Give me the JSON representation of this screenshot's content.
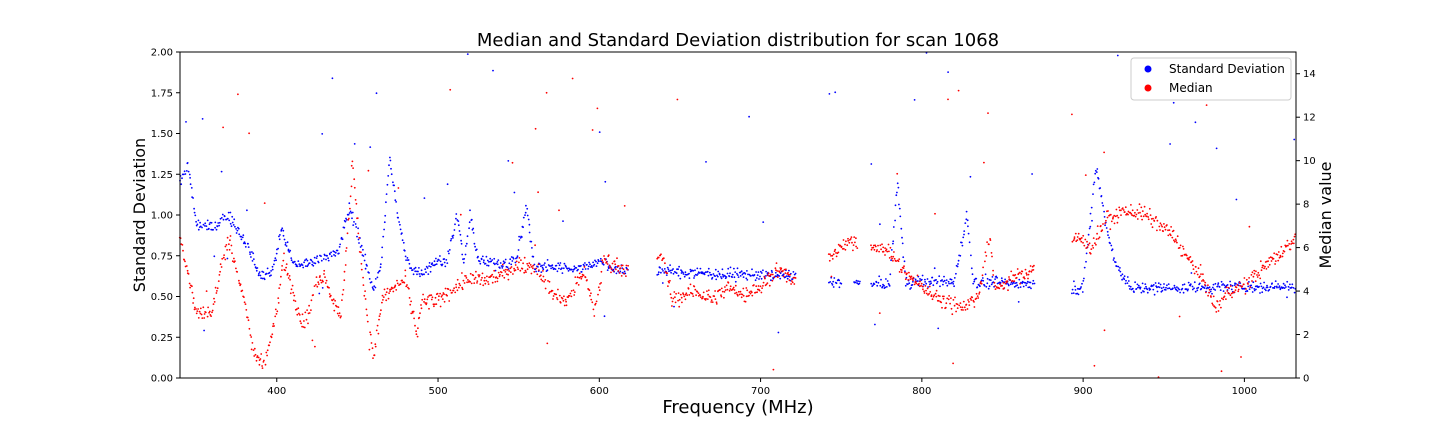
{
  "chart_data": {
    "type": "scatter",
    "title": "Median and Standard Deviation distribution for scan 1068",
    "xlabel": "Frequency (MHz)",
    "ylabel_left": "Standard Deviation",
    "ylabel_right": "Median value",
    "xlim": [
      340,
      1032
    ],
    "ylim_left": [
      0,
      2
    ],
    "ylim_right": [
      0,
      15
    ],
    "x_ticks": [
      400,
      500,
      600,
      700,
      800,
      900,
      1000
    ],
    "y_ticks_left": [
      "0.00",
      "0.25",
      "0.50",
      "0.75",
      "1.00",
      "1.25",
      "1.50",
      "1.75",
      "2.00"
    ],
    "y_ticks_right": [
      "0",
      "2",
      "4",
      "6",
      "8",
      "10",
      "12",
      "14"
    ],
    "grid": false,
    "legend_position": "top-right",
    "colors": {
      "std": "#0000ff",
      "median": "#ff0000"
    },
    "series": [
      {
        "name": "Standard Deviation",
        "axis": "left",
        "color": "#0000ff",
        "profile": [
          [
            340,
            1.2
          ],
          [
            345,
            1.3
          ],
          [
            350,
            0.95
          ],
          [
            360,
            0.92
          ],
          [
            370,
            1.0
          ],
          [
            380,
            0.85
          ],
          [
            390,
            0.62
          ],
          [
            397,
            0.65
          ],
          [
            403,
            0.92
          ],
          [
            410,
            0.7
          ],
          [
            420,
            0.7
          ],
          [
            430,
            0.75
          ],
          [
            438,
            0.76
          ],
          [
            445,
            1.05
          ],
          [
            450,
            0.9
          ],
          [
            455,
            0.7
          ],
          [
            460,
            0.55
          ],
          [
            465,
            0.72
          ],
          [
            470,
            1.35
          ],
          [
            475,
            1.0
          ],
          [
            480,
            0.74
          ],
          [
            485,
            0.66
          ],
          [
            490,
            0.65
          ],
          [
            500,
            0.72
          ],
          [
            505,
            0.7
          ],
          [
            512,
            1.0
          ],
          [
            516,
            0.7
          ],
          [
            520,
            1.0
          ],
          [
            525,
            0.72
          ],
          [
            540,
            0.7
          ],
          [
            548,
            0.72
          ],
          [
            555,
            1.05
          ],
          [
            560,
            0.66
          ],
          [
            565,
            0.68
          ],
          [
            590,
            0.68
          ],
          [
            600,
            0.72
          ],
          [
            610,
            0.67
          ],
          [
            615,
            0.65
          ],
          [
            640,
            0.66
          ],
          [
            650,
            0.65
          ],
          [
            700,
            0.63
          ],
          [
            720,
            0.62
          ],
          [
            760,
            0.58
          ],
          [
            780,
            0.57
          ],
          [
            785,
            1.2
          ],
          [
            790,
            0.59
          ],
          [
            820,
            0.59
          ],
          [
            828,
            1.0
          ],
          [
            832,
            0.59
          ],
          [
            870,
            0.58
          ],
          [
            900,
            0.55
          ],
          [
            908,
            1.3
          ],
          [
            915,
            0.9
          ],
          [
            920,
            0.7
          ],
          [
            930,
            0.55
          ],
          [
            1000,
            0.56
          ],
          [
            1032,
            0.56
          ]
        ],
        "gaps": [
          [
            618,
            636
          ],
          [
            722,
            742
          ],
          [
            750,
            758
          ],
          [
            762,
            768
          ],
          [
            870,
            893
          ]
        ]
      },
      {
        "name": "Median",
        "axis": "right",
        "color": "#ff0000",
        "profile": [
          [
            340,
            6.5
          ],
          [
            345,
            4.8
          ],
          [
            350,
            3.0
          ],
          [
            360,
            3.0
          ],
          [
            365,
            5.0
          ],
          [
            370,
            6.5
          ],
          [
            380,
            3.5
          ],
          [
            386,
            1.0
          ],
          [
            393,
            0.8
          ],
          [
            400,
            3.0
          ],
          [
            404,
            5.5
          ],
          [
            410,
            4.0
          ],
          [
            416,
            2.5
          ],
          [
            420,
            3.0
          ],
          [
            425,
            4.5
          ],
          [
            430,
            4.8
          ],
          [
            435,
            3.5
          ],
          [
            440,
            3.0
          ],
          [
            444,
            6.5
          ],
          [
            447,
            10.0
          ],
          [
            452,
            5.5
          ],
          [
            456,
            3.0
          ],
          [
            460,
            1.0
          ],
          [
            465,
            3.5
          ],
          [
            470,
            4.0
          ],
          [
            480,
            4.5
          ],
          [
            487,
            2.0
          ],
          [
            490,
            3.5
          ],
          [
            500,
            3.5
          ],
          [
            510,
            4.2
          ],
          [
            520,
            4.5
          ],
          [
            530,
            4.5
          ],
          [
            545,
            5.0
          ],
          [
            555,
            5.2
          ],
          [
            562,
            5.0
          ],
          [
            570,
            4.0
          ],
          [
            580,
            3.5
          ],
          [
            590,
            5.0
          ],
          [
            597,
            3.0
          ],
          [
            603,
            5.5
          ],
          [
            615,
            5.0
          ],
          [
            640,
            5.5
          ],
          [
            645,
            3.6
          ],
          [
            660,
            4.0
          ],
          [
            670,
            3.6
          ],
          [
            680,
            4.2
          ],
          [
            690,
            3.8
          ],
          [
            700,
            4.2
          ],
          [
            710,
            5.0
          ],
          [
            720,
            4.5
          ],
          [
            757,
            6.3
          ],
          [
            770,
            6.1
          ],
          [
            780,
            5.8
          ],
          [
            790,
            4.8
          ],
          [
            800,
            4.2
          ],
          [
            815,
            3.5
          ],
          [
            825,
            3.3
          ],
          [
            835,
            3.7
          ],
          [
            842,
            6.5
          ],
          [
            845,
            4.2
          ],
          [
            855,
            4.5
          ],
          [
            868,
            5.0
          ],
          [
            895,
            6.5
          ],
          [
            905,
            6.0
          ],
          [
            915,
            7.3
          ],
          [
            925,
            7.7
          ],
          [
            935,
            7.6
          ],
          [
            945,
            7.2
          ],
          [
            955,
            6.6
          ],
          [
            965,
            5.5
          ],
          [
            975,
            4.5
          ],
          [
            982,
            3.2
          ],
          [
            990,
            4.0
          ],
          [
            1000,
            4.2
          ],
          [
            1010,
            5.0
          ],
          [
            1020,
            5.5
          ],
          [
            1032,
            6.5
          ]
        ],
        "gaps": [
          [
            618,
            636
          ],
          [
            722,
            742
          ],
          [
            760,
            768
          ],
          [
            870,
            893
          ]
        ]
      }
    ]
  }
}
